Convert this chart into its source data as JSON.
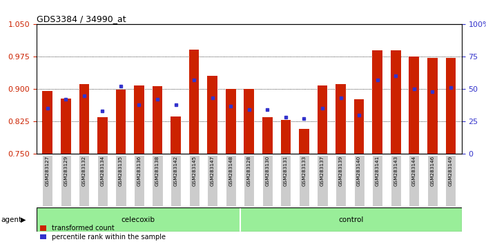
{
  "title": "GDS3384 / 34990_at",
  "samples": [
    "GSM283127",
    "GSM283129",
    "GSM283132",
    "GSM283134",
    "GSM283135",
    "GSM283136",
    "GSM283138",
    "GSM283142",
    "GSM283145",
    "GSM283147",
    "GSM283148",
    "GSM283128",
    "GSM283130",
    "GSM283131",
    "GSM283133",
    "GSM283137",
    "GSM283139",
    "GSM283140",
    "GSM283141",
    "GSM283143",
    "GSM283144",
    "GSM283146",
    "GSM283149"
  ],
  "red_values": [
    0.896,
    0.878,
    0.912,
    0.835,
    0.898,
    0.908,
    0.907,
    0.836,
    0.992,
    0.93,
    0.9,
    0.9,
    0.835,
    0.828,
    0.807,
    0.908,
    0.912,
    0.876,
    0.99,
    0.99,
    0.975,
    0.972,
    0.972
  ],
  "blue_pct": [
    35,
    42,
    45,
    33,
    52,
    38,
    42,
    38,
    57,
    43,
    37,
    34,
    34,
    28,
    27,
    35,
    43,
    30,
    57,
    60,
    50,
    48,
    51
  ],
  "celecoxib_count": 11,
  "control_count": 12,
  "ylim_left": [
    0.75,
    1.05
  ],
  "ylim_right": [
    0,
    100
  ],
  "yticks_left": [
    0.75,
    0.825,
    0.9,
    0.975,
    1.05
  ],
  "yticks_right": [
    0,
    25,
    50,
    75,
    100
  ],
  "bar_color": "#cc2200",
  "blue_color": "#3333cc",
  "cell_bg": "#cccccc",
  "agent_bg": "#99ee99",
  "legend_red_label": "transformed count",
  "legend_blue_label": "percentile rank within the sample",
  "agent_label": "agent",
  "celecoxib_label": "celecoxib",
  "control_label": "control",
  "bar_width": 0.55
}
